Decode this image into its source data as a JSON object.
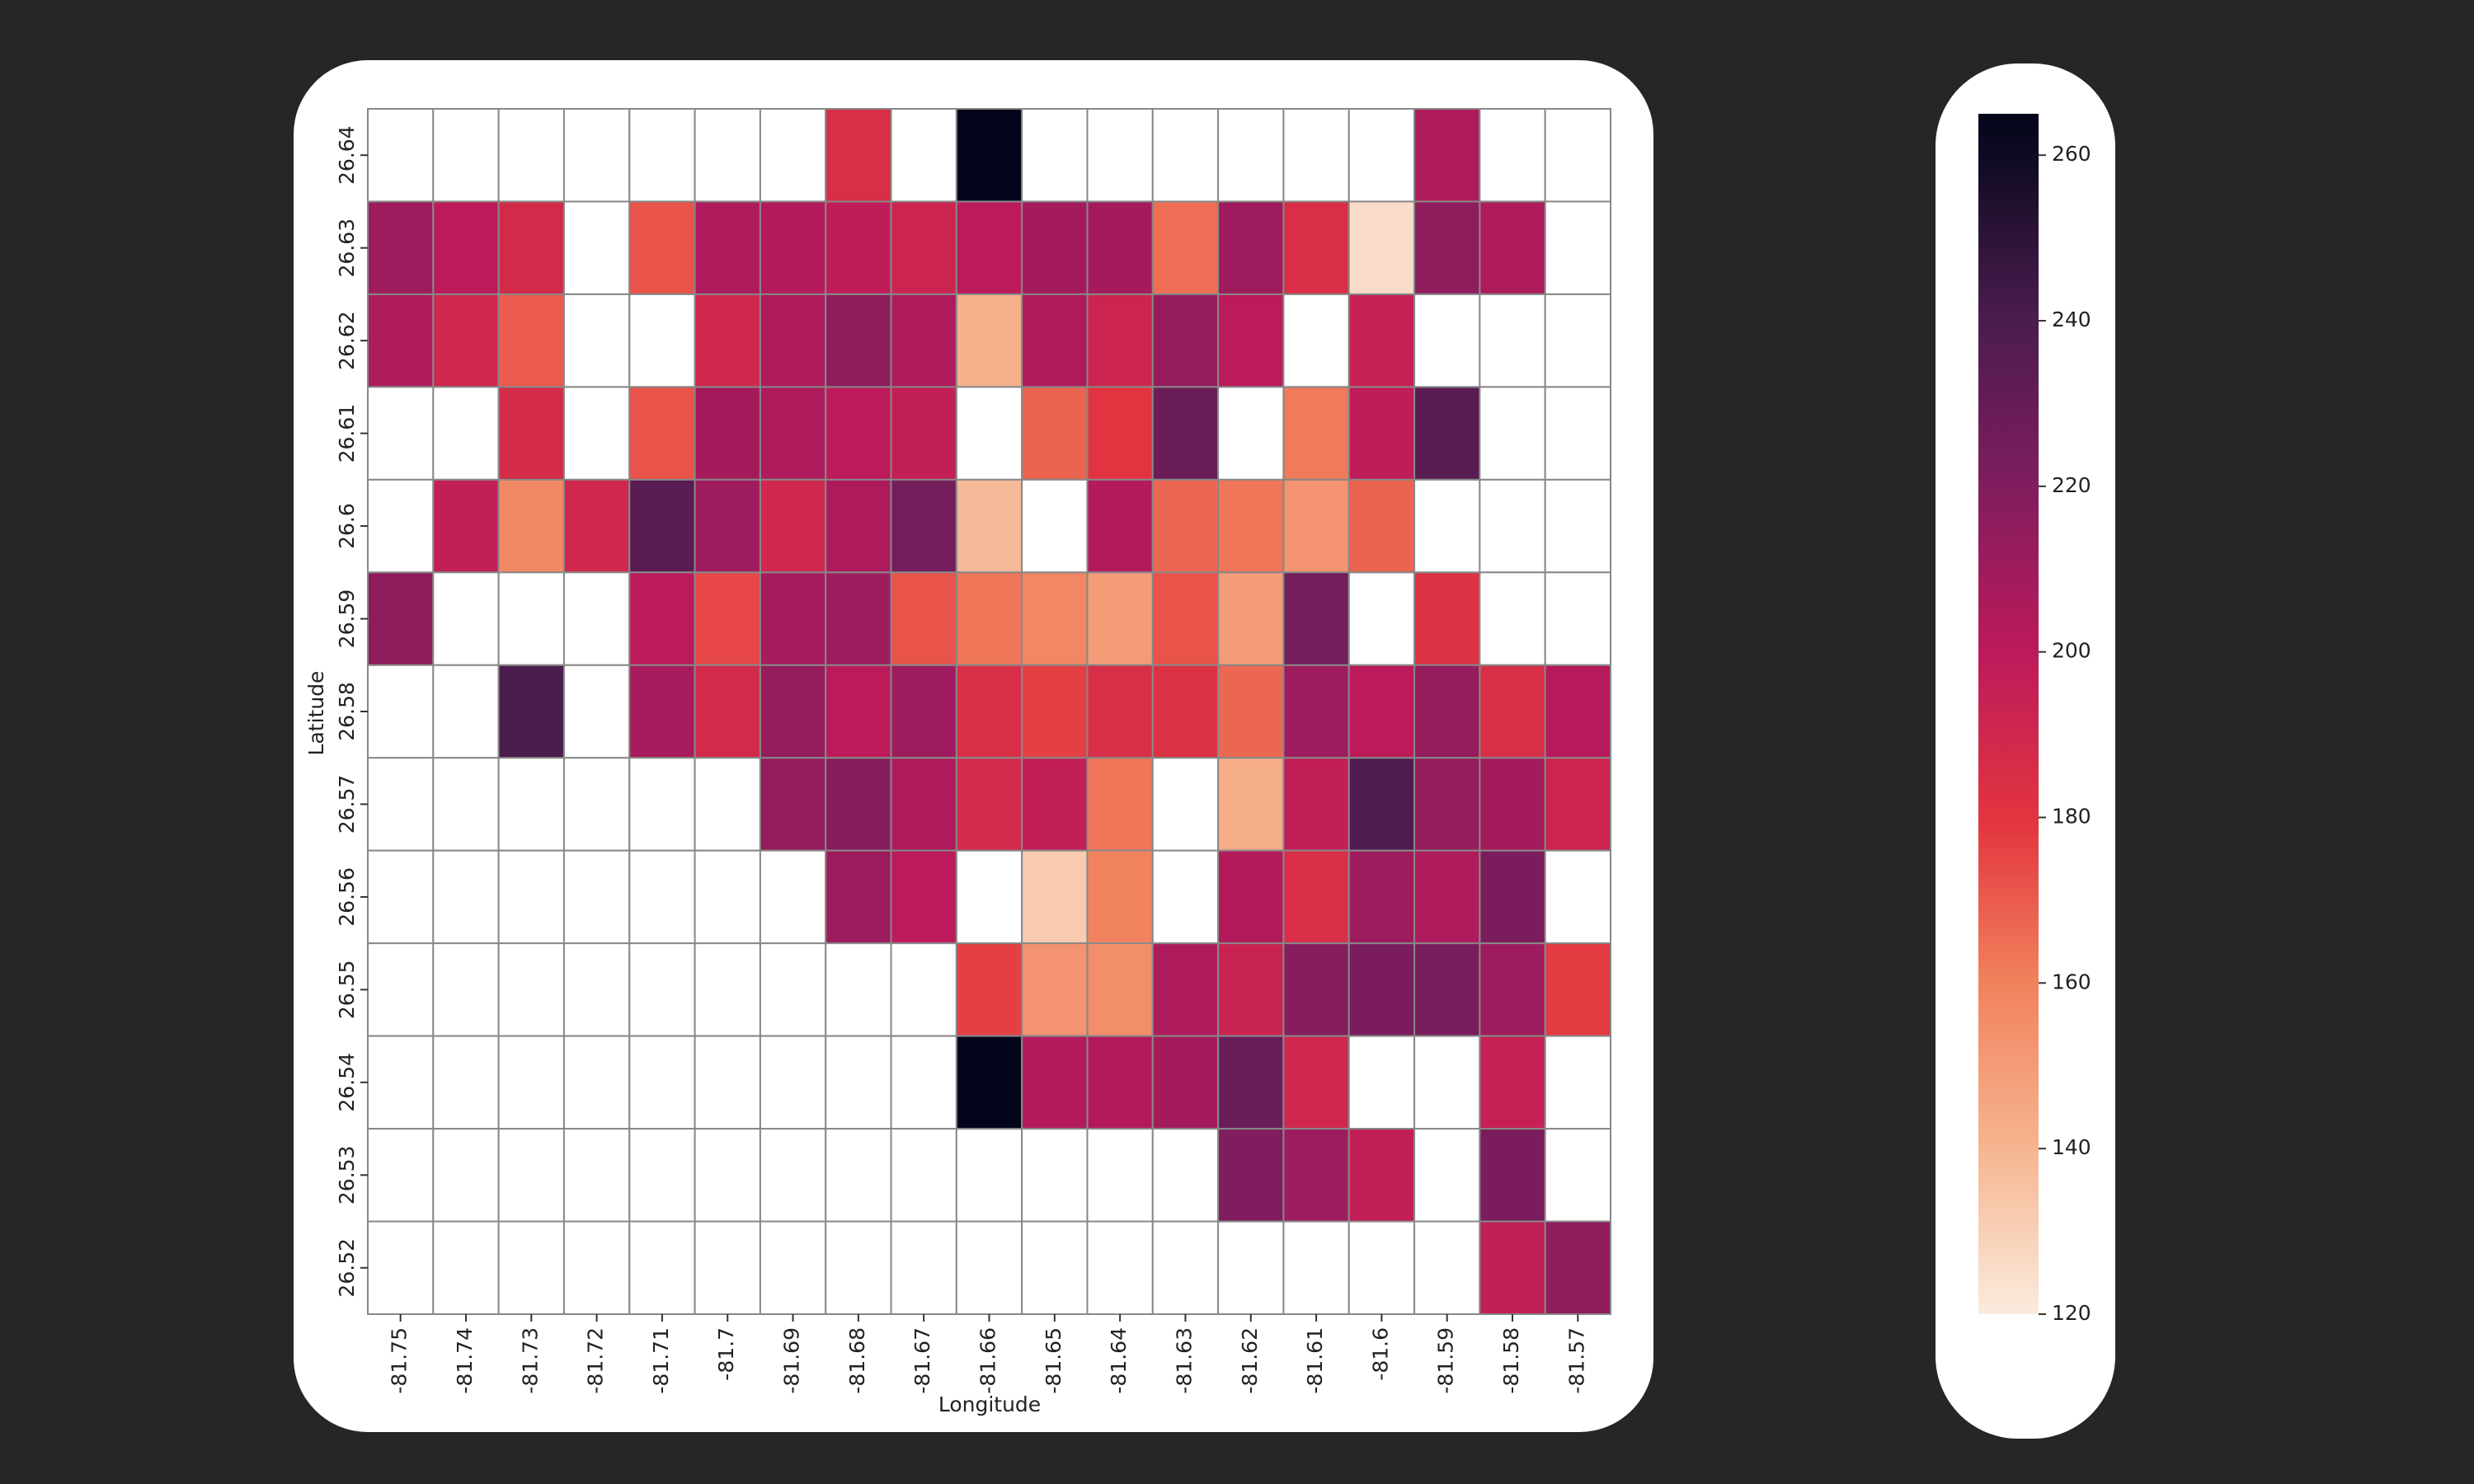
{
  "chart_data": {
    "type": "heatmap",
    "x_label": "Longitude",
    "y_label": "Latitude",
    "x": [
      "-81.75",
      "-81.74",
      "-81.73",
      "-81.72",
      "-81.71",
      "-81.7",
      "-81.69",
      "-81.68",
      "-81.67",
      "-81.66",
      "-81.65",
      "-81.64",
      "-81.63",
      "-81.62",
      "-81.61",
      "-81.6",
      "-81.59",
      "-81.58",
      "-81.57"
    ],
    "y": [
      "26.64",
      "26.63",
      "26.62",
      "26.61",
      "26.6",
      "26.59",
      "26.58",
      "26.57",
      "26.56",
      "26.55",
      "26.54",
      "26.53",
      "26.52"
    ],
    "values": [
      [
        null,
        null,
        null,
        null,
        null,
        null,
        null,
        185,
        null,
        265,
        null,
        null,
        null,
        null,
        null,
        null,
        205,
        null,
        null
      ],
      [
        210,
        200,
        188,
        null,
        172,
        205,
        203,
        198,
        192,
        200,
        208,
        208,
        165,
        210,
        185,
        125,
        215,
        205,
        null
      ],
      [
        205,
        190,
        170,
        null,
        null,
        190,
        205,
        215,
        205,
        142,
        205,
        192,
        213,
        200,
        null,
        195,
        null,
        null,
        null
      ],
      [
        null,
        null,
        187,
        null,
        172,
        208,
        205,
        200,
        197,
        null,
        168,
        180,
        228,
        null,
        162,
        198,
        235,
        null,
        null
      ],
      [
        null,
        197,
        157,
        190,
        235,
        210,
        190,
        205,
        225,
        138,
        null,
        203,
        167,
        163,
        153,
        168,
        null,
        null,
        null
      ],
      [
        215,
        null,
        null,
        null,
        200,
        175,
        207,
        210,
        172,
        163,
        158,
        150,
        172,
        150,
        225,
        null,
        182,
        null,
        null
      ],
      [
        null,
        null,
        240,
        null,
        207,
        188,
        213,
        200,
        210,
        185,
        177,
        185,
        182,
        167,
        210,
        200,
        213,
        185,
        202
      ],
      [
        null,
        null,
        null,
        null,
        null,
        null,
        213,
        218,
        205,
        188,
        197,
        163,
        null,
        143,
        197,
        238,
        213,
        208,
        192
      ],
      [
        null,
        null,
        null,
        null,
        null,
        null,
        null,
        210,
        200,
        null,
        132,
        160,
        null,
        203,
        185,
        210,
        205,
        222,
        null
      ],
      [
        null,
        null,
        null,
        null,
        null,
        null,
        null,
        null,
        null,
        177,
        153,
        155,
        205,
        193,
        218,
        222,
        223,
        210,
        178
      ],
      [
        null,
        null,
        null,
        null,
        null,
        null,
        null,
        null,
        null,
        265,
        203,
        203,
        208,
        228,
        190,
        null,
        null,
        195,
        null
      ],
      [
        null,
        null,
        null,
        null,
        null,
        null,
        null,
        null,
        null,
        null,
        null,
        null,
        null,
        220,
        210,
        197,
        null,
        222,
        null
      ],
      [
        null,
        null,
        null,
        null,
        null,
        null,
        null,
        null,
        null,
        null,
        null,
        null,
        null,
        null,
        null,
        null,
        null,
        197,
        215
      ]
    ],
    "colormap": "rocket_r",
    "clim": [
      120,
      265
    ],
    "cticks": [
      120,
      140,
      160,
      180,
      200,
      220,
      240,
      260
    ]
  }
}
